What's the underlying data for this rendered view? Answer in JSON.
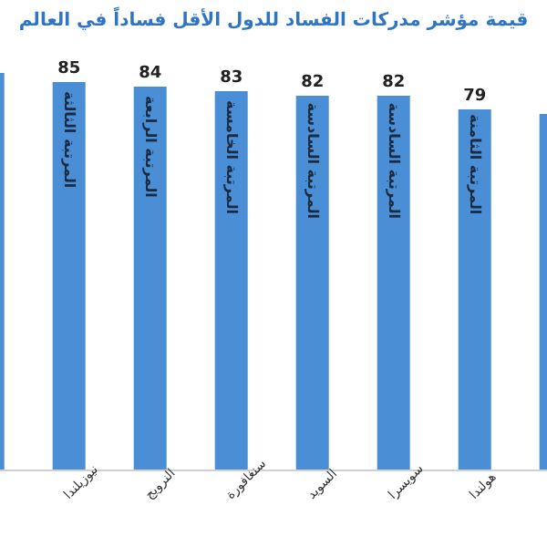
{
  "chart_data": {
    "type": "bar",
    "title": "قيمة مؤشر مدركات الفساد للدول الأقل فساداً في العالم",
    "categories": [
      null,
      "نيوزيلندا",
      "النرويج",
      "سنغافورة",
      "السويد",
      "سويسرا",
      "هولندا",
      null
    ],
    "values": [
      87,
      85,
      84,
      83,
      82,
      82,
      79,
      78
    ],
    "value_labels": [
      null,
      "85",
      "84",
      "83",
      "82",
      "82",
      "79",
      null
    ],
    "color": "#4a8fd6",
    "tick_labels": "x",
    "grid": false,
    "legend": false,
    "annotations": [
      {
        "text": "المرتبة الثالثة",
        "x": "نيوزيلندا",
        "y": 83
      },
      {
        "text": "المرتبة الرابعة",
        "x": "النرويج",
        "y": 82
      },
      {
        "text": "المرتبة الخامسة",
        "x": "سنغافورة",
        "y": 81
      },
      {
        "text": "المرتبة السادسة",
        "x": "السويد",
        "y": 80.5
      },
      {
        "text": "المرتبة السادسة",
        "x": "سويسرا",
        "y": 80.5
      },
      {
        "text": "المرتبة الثامنة",
        "x": "هولندا",
        "y": 78
      }
    ]
  }
}
